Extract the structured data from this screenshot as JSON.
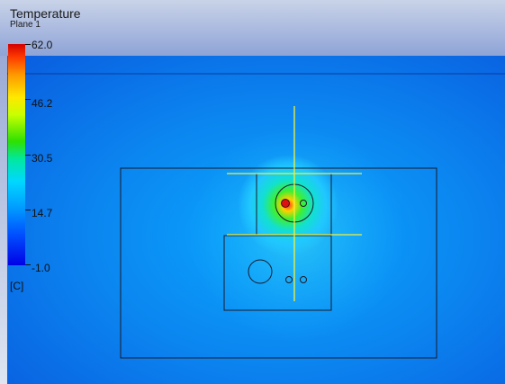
{
  "legend": {
    "title": "Temperature",
    "subtitle": "Plane 1",
    "ticks": [
      "62.0",
      "46.2",
      "30.5",
      "14.7",
      "-1.0"
    ],
    "unit": "[C]",
    "colors": [
      "#d40000",
      "#ff9a00",
      "#ffe800",
      "#2ee000",
      "#00d8ff",
      "#0050ff",
      "#0000e6"
    ]
  },
  "field_colors": {
    "background": "#0a78e8",
    "hot_core": "#e01010",
    "outline": "#1a1a1a",
    "guide_lines": "#f0f040"
  }
}
